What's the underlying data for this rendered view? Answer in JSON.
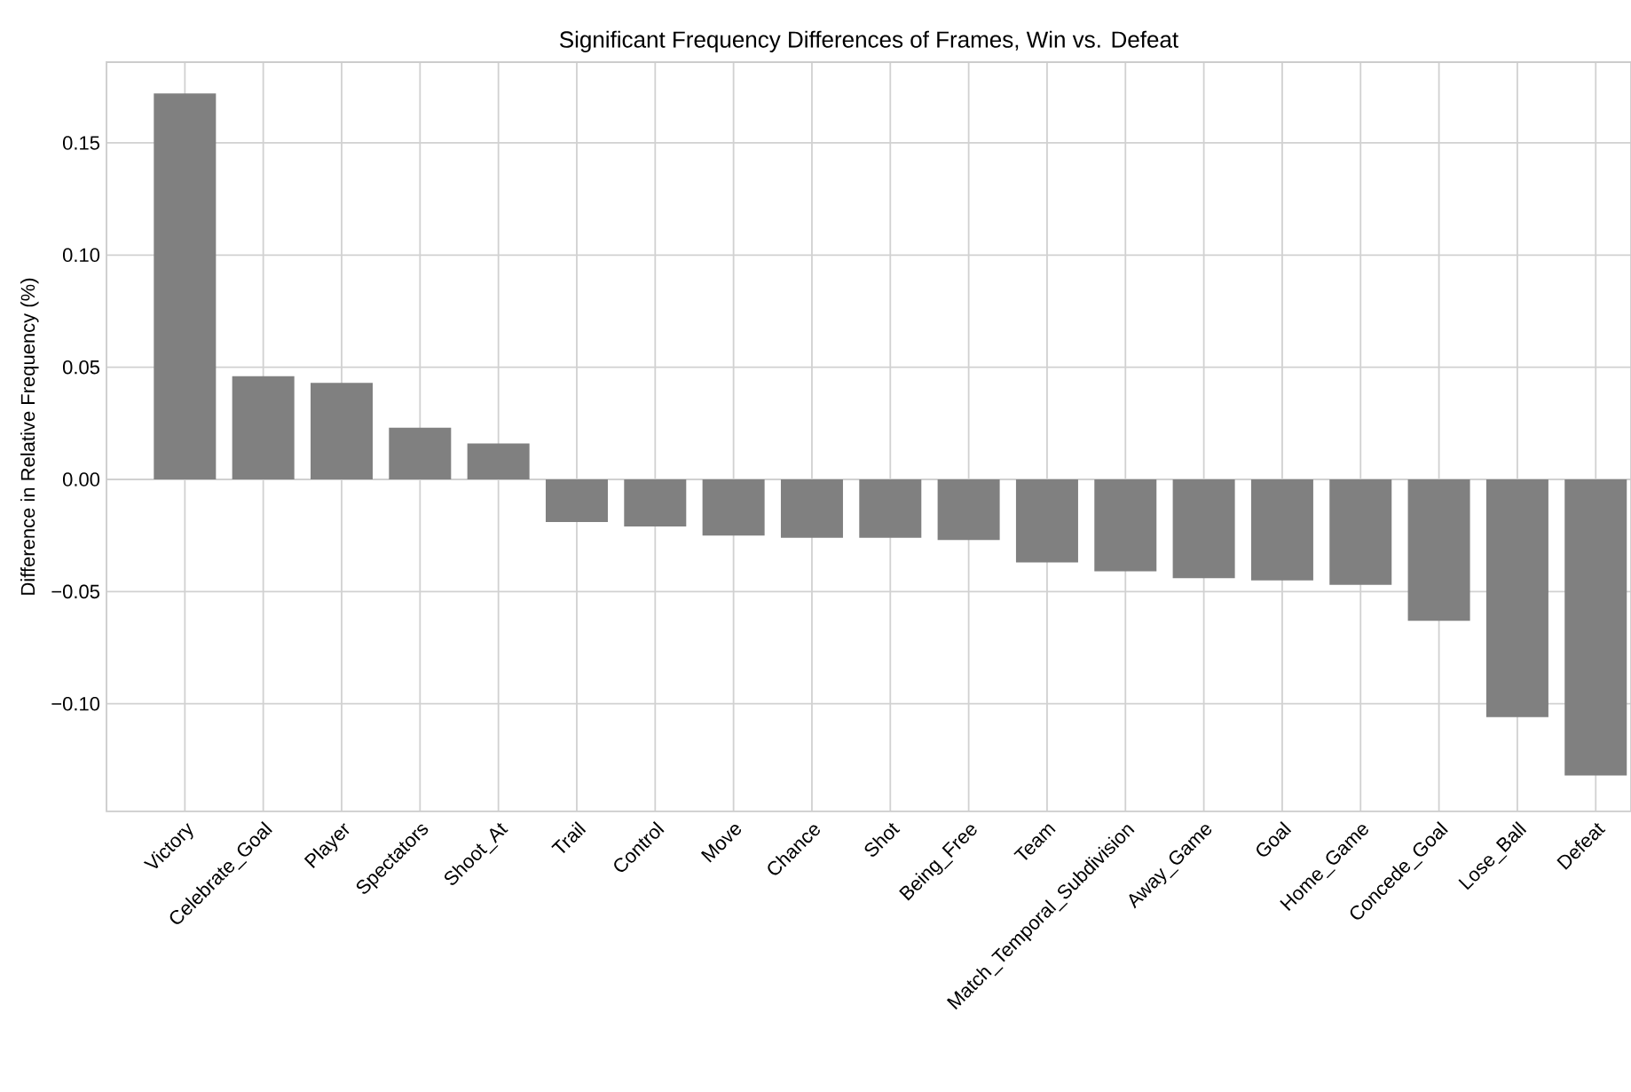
{
  "chart_data": {
    "type": "bar",
    "title": "Significant Frequency Differences of Frames, Win vs. Defeat",
    "ylabel": "Difference in Relative Frequency (%)",
    "categories": [
      "Victory",
      "Celebrate_Goal",
      "Player",
      "Spectators",
      "Shoot_At",
      "Trail",
      "Control",
      "Move",
      "Chance",
      "Shot",
      "Being_Free",
      "Team",
      "Match_Temporal_Subdivision",
      "Away_Game",
      "Goal",
      "Home_Game",
      "Concede_Goal",
      "Lose_Ball",
      "Defeat"
    ],
    "values": [
      0.172,
      0.046,
      0.043,
      0.023,
      0.016,
      -0.019,
      -0.021,
      -0.025,
      -0.026,
      -0.026,
      -0.027,
      -0.037,
      -0.041,
      -0.044,
      -0.045,
      -0.047,
      -0.063,
      -0.106,
      -0.132
    ],
    "color": "#808080",
    "ylim": [
      -0.148,
      0.186
    ],
    "yticks": [
      {
        "value": -0.1,
        "label": "−0.10"
      },
      {
        "value": -0.05,
        "label": "−0.05"
      },
      {
        "value": 0,
        "label": "0.00"
      },
      {
        "value": 0.05,
        "label": "0.05"
      },
      {
        "value": 0.1,
        "label": "0.10"
      },
      {
        "value": 0.15,
        "label": "0.15"
      }
    ],
    "grid": true
  }
}
